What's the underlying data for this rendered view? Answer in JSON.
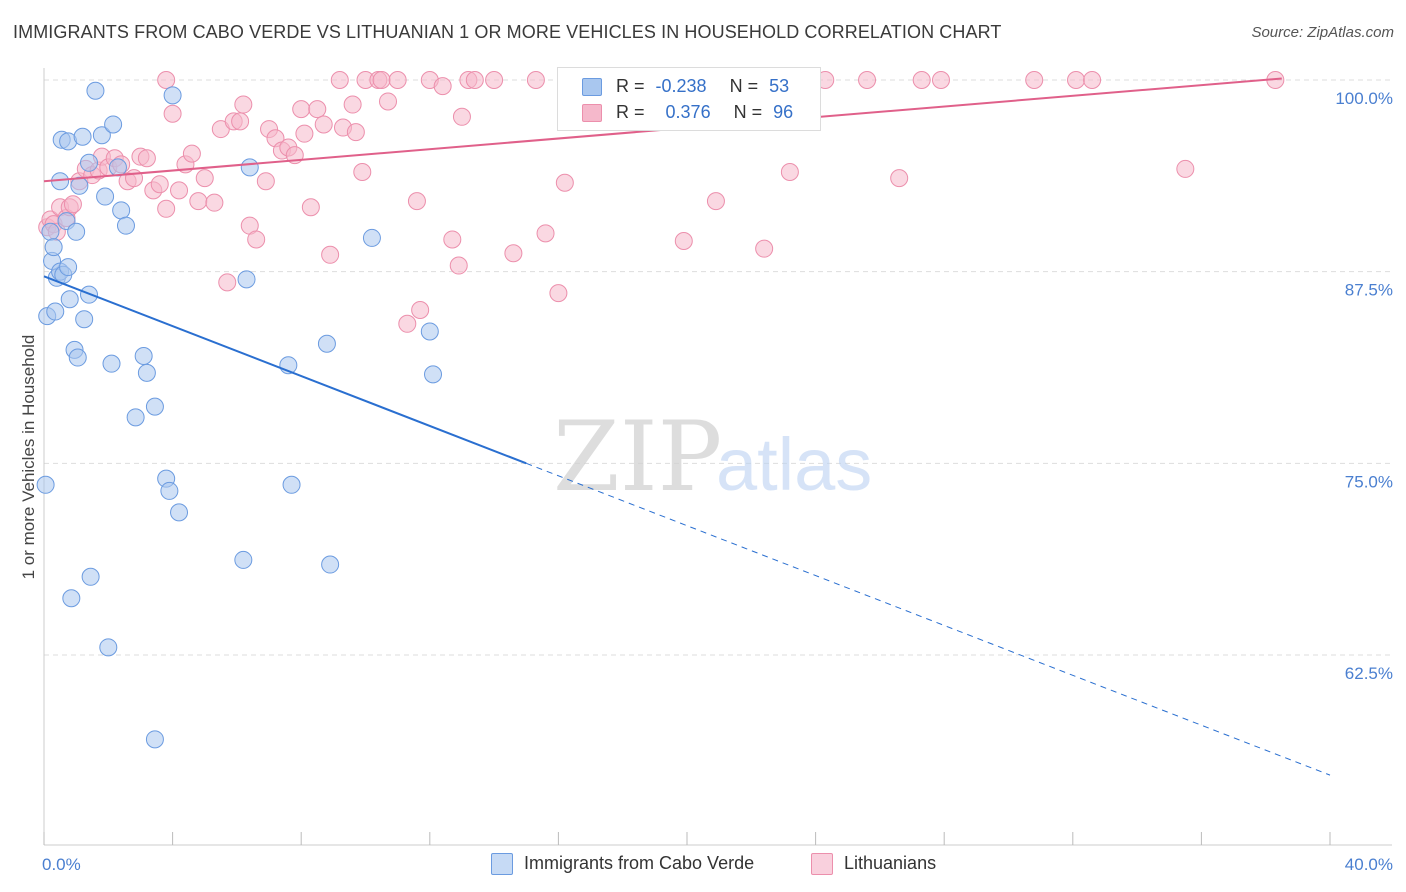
{
  "header": {
    "title": "IMMIGRANTS FROM CABO VERDE VS LITHUANIAN 1 OR MORE VEHICLES IN HOUSEHOLD CORRELATION CHART",
    "source": "Source: ZipAtlas.com"
  },
  "watermark": {
    "zip": "ZIP",
    "atlas": "atlas"
  },
  "legend": {
    "rows": [
      {
        "r_label": "R =",
        "r_value": "-0.238",
        "n_label": "N =",
        "n_value": "53"
      },
      {
        "r_label": "R =",
        "r_value": "0.376",
        "n_label": "N =",
        "n_value": "96"
      }
    ],
    "series_labels": [
      "Immigrants from Cabo Verde",
      "Lithuanians"
    ]
  },
  "colors": {
    "blue_fill": "#a9c7ef",
    "blue_stroke": "#6b9be0",
    "blue_line": "#2a6fd0",
    "pink_fill": "#f5b8cb",
    "pink_stroke": "#ec8fac",
    "pink_line": "#e0608a",
    "tick_text": "#4a7fd0",
    "grid": "#dddddd"
  },
  "chart_data": {
    "type": "scatter",
    "title": "IMMIGRANTS FROM CABO VERDE VS LITHUANIAN 1 OR MORE VEHICLES IN HOUSEHOLD CORRELATION CHART",
    "xlabel": "",
    "ylabel": "1 or more Vehicles in Household",
    "xlim": [
      0,
      40
    ],
    "ylim": [
      52.5,
      101.5
    ],
    "x_tick_labels": [
      {
        "value": 0,
        "label": "0.0%"
      },
      {
        "value": 40,
        "label": "40.0%"
      }
    ],
    "y_ticks": [
      {
        "value": 100,
        "label": "100.0%"
      },
      {
        "value": 87.5,
        "label": "87.5%"
      },
      {
        "value": 75,
        "label": "75.0%"
      },
      {
        "value": 62.5,
        "label": "62.5%"
      }
    ],
    "grid": true,
    "legend_position": "top-center",
    "series": [
      {
        "name": "Immigrants from Cabo Verde",
        "color": "#6b9be0",
        "points": [
          [
            0.05,
            73.6
          ],
          [
            0.1,
            84.6
          ],
          [
            0.2,
            90.1
          ],
          [
            0.25,
            88.2
          ],
          [
            0.3,
            89.1
          ],
          [
            0.35,
            84.9
          ],
          [
            0.4,
            87.1
          ],
          [
            0.5,
            93.4
          ],
          [
            0.5,
            87.5
          ],
          [
            0.55,
            96.1
          ],
          [
            0.6,
            87.3
          ],
          [
            0.7,
            90.8
          ],
          [
            0.75,
            96.0
          ],
          [
            0.75,
            87.8
          ],
          [
            0.8,
            85.7
          ],
          [
            0.85,
            66.2
          ],
          [
            0.95,
            82.4
          ],
          [
            1.0,
            90.1
          ],
          [
            1.05,
            81.9
          ],
          [
            1.1,
            93.1
          ],
          [
            1.2,
            96.3
          ],
          [
            1.25,
            84.4
          ],
          [
            1.4,
            94.6
          ],
          [
            1.4,
            86.0
          ],
          [
            1.45,
            67.6
          ],
          [
            1.6,
            99.3
          ],
          [
            1.8,
            96.4
          ],
          [
            1.9,
            92.4
          ],
          [
            2.0,
            63.0
          ],
          [
            2.1,
            81.5
          ],
          [
            2.15,
            97.1
          ],
          [
            2.3,
            94.3
          ],
          [
            2.4,
            91.5
          ],
          [
            2.55,
            90.5
          ],
          [
            2.85,
            78.0
          ],
          [
            3.1,
            82.0
          ],
          [
            3.2,
            80.9
          ],
          [
            3.45,
            57.0
          ],
          [
            3.45,
            78.7
          ],
          [
            3.8,
            74.0
          ],
          [
            3.9,
            73.2
          ],
          [
            4.0,
            99.0
          ],
          [
            4.2,
            71.8
          ],
          [
            6.2,
            68.7
          ],
          [
            6.3,
            87.0
          ],
          [
            6.4,
            94.3
          ],
          [
            7.6,
            81.4
          ],
          [
            7.7,
            73.6
          ],
          [
            8.8,
            82.8
          ],
          [
            8.9,
            68.4
          ],
          [
            10.2,
            89.7
          ],
          [
            12.0,
            83.6
          ],
          [
            12.1,
            80.8
          ]
        ],
        "trend": {
          "x": [
            0,
            15
          ],
          "y": [
            87.2,
            75.0
          ],
          "dashed_extension_to_x": 40
        }
      },
      {
        "name": "Lithuanians",
        "color": "#ec8fac",
        "points": [
          [
            0.1,
            90.4
          ],
          [
            0.2,
            90.9
          ],
          [
            0.3,
            90.6
          ],
          [
            0.4,
            90.1
          ],
          [
            0.5,
            91.7
          ],
          [
            0.7,
            91.0
          ],
          [
            0.8,
            91.7
          ],
          [
            0.9,
            91.9
          ],
          [
            1.1,
            93.4
          ],
          [
            1.3,
            94.2
          ],
          [
            1.5,
            93.8
          ],
          [
            1.7,
            94.1
          ],
          [
            1.8,
            95.0
          ],
          [
            2.0,
            94.3
          ],
          [
            2.2,
            94.9
          ],
          [
            2.4,
            94.5
          ],
          [
            2.6,
            93.4
          ],
          [
            2.8,
            93.6
          ],
          [
            3.0,
            95.0
          ],
          [
            3.2,
            94.9
          ],
          [
            3.4,
            92.8
          ],
          [
            3.6,
            93.2
          ],
          [
            3.8,
            91.6
          ],
          [
            4.0,
            97.8
          ],
          [
            4.2,
            92.8
          ],
          [
            4.4,
            94.5
          ],
          [
            4.6,
            95.2
          ],
          [
            4.8,
            92.1
          ],
          [
            5.0,
            93.6
          ],
          [
            5.3,
            92.0
          ],
          [
            5.5,
            96.8
          ],
          [
            5.7,
            86.8
          ],
          [
            5.9,
            97.3
          ],
          [
            6.1,
            97.3
          ],
          [
            6.2,
            98.4
          ],
          [
            6.4,
            90.5
          ],
          [
            6.6,
            89.6
          ],
          [
            6.9,
            93.4
          ],
          [
            7.0,
            96.8
          ],
          [
            7.2,
            96.2
          ],
          [
            7.4,
            95.4
          ],
          [
            7.6,
            95.6
          ],
          [
            7.8,
            95.1
          ],
          [
            8.0,
            98.1
          ],
          [
            8.1,
            96.5
          ],
          [
            8.3,
            91.7
          ],
          [
            8.5,
            98.1
          ],
          [
            8.7,
            97.1
          ],
          [
            8.9,
            88.6
          ],
          [
            9.2,
            100.0
          ],
          [
            9.3,
            96.9
          ],
          [
            9.6,
            98.4
          ],
          [
            9.7,
            96.6
          ],
          [
            9.9,
            94.0
          ],
          [
            10.0,
            100.0
          ],
          [
            10.4,
            100.0
          ],
          [
            10.5,
            100.0
          ],
          [
            10.7,
            98.6
          ],
          [
            11.0,
            100.0
          ],
          [
            11.3,
            84.1
          ],
          [
            11.6,
            92.1
          ],
          [
            11.7,
            85.0
          ],
          [
            12.0,
            100.0
          ],
          [
            12.4,
            99.6
          ],
          [
            12.7,
            89.6
          ],
          [
            12.9,
            87.9
          ],
          [
            13.0,
            97.6
          ],
          [
            13.2,
            100.0
          ],
          [
            13.4,
            100.0
          ],
          [
            14.0,
            100.0
          ],
          [
            14.6,
            88.7
          ],
          [
            15.3,
            100.0
          ],
          [
            15.6,
            90.0
          ],
          [
            16.0,
            86.1
          ],
          [
            16.2,
            93.3
          ],
          [
            17.0,
            100.0
          ],
          [
            18.0,
            100.0
          ],
          [
            19.7,
            100.0
          ],
          [
            19.9,
            89.5
          ],
          [
            20.9,
            92.1
          ],
          [
            21.5,
            100.0
          ],
          [
            22.3,
            100.0
          ],
          [
            22.4,
            89.0
          ],
          [
            23.0,
            100.0
          ],
          [
            23.2,
            94.0
          ],
          [
            24.3,
            100.0
          ],
          [
            25.6,
            100.0
          ],
          [
            26.6,
            93.6
          ],
          [
            27.3,
            100.0
          ],
          [
            27.9,
            100.0
          ],
          [
            30.8,
            100.0
          ],
          [
            32.1,
            100.0
          ],
          [
            32.6,
            100.0
          ],
          [
            35.5,
            94.2
          ],
          [
            38.3,
            100.0
          ],
          [
            3.8,
            100.0
          ]
        ],
        "trend": {
          "x": [
            0,
            38.5
          ],
          "y": [
            93.4,
            100.1
          ]
        }
      }
    ]
  }
}
